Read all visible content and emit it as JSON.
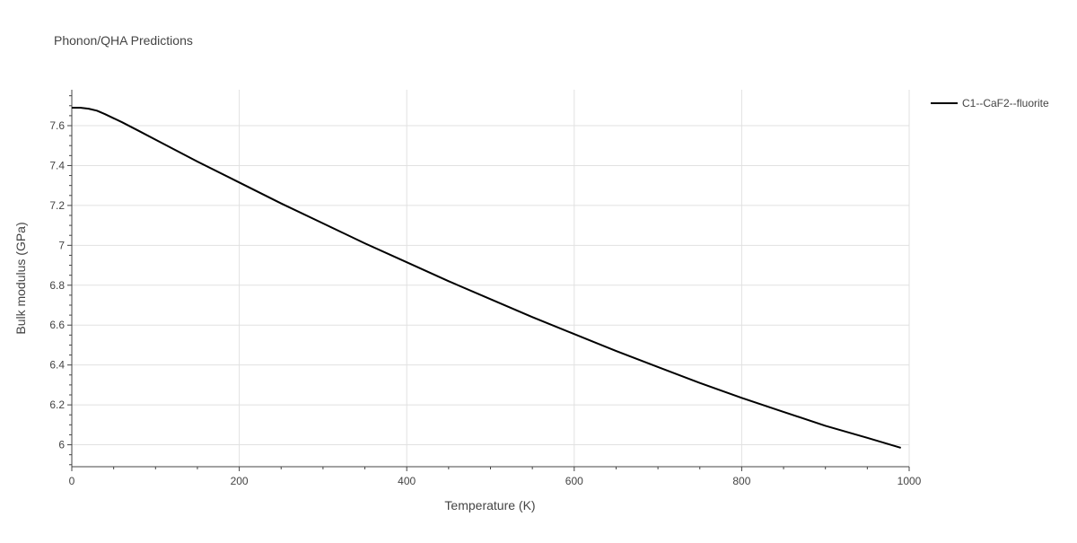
{
  "chart_data": {
    "type": "line",
    "title": "Phonon/QHA Predictions",
    "xlabel": "Temperature (K)",
    "ylabel": "Bulk modulus (GPa)",
    "xlim": [
      0,
      1000
    ],
    "ylim": [
      5.89,
      7.78
    ],
    "x_ticks": [
      0,
      200,
      400,
      600,
      800,
      1000
    ],
    "y_ticks": [
      6,
      6.2,
      6.4,
      6.6,
      6.8,
      7,
      7.2,
      7.4,
      7.6
    ],
    "x_tick_labels": [
      "0",
      "200",
      "400",
      "600",
      "800",
      "1000"
    ],
    "y_tick_labels": [
      "6",
      "6.2",
      "6.4",
      "6.6",
      "6.8",
      "7",
      "7.2",
      "7.4",
      "7.6"
    ],
    "grid": true,
    "legend_position": "top-right",
    "series": [
      {
        "name": "C1--CaF2--fluorite",
        "color": "#000000",
        "x": [
          0,
          10,
          20,
          30,
          40,
          50,
          60,
          80,
          100,
          150,
          200,
          250,
          300,
          350,
          400,
          450,
          500,
          550,
          600,
          650,
          700,
          750,
          800,
          850,
          900,
          950,
          990
        ],
        "y": [
          7.69,
          7.69,
          7.685,
          7.675,
          7.657,
          7.637,
          7.617,
          7.574,
          7.53,
          7.42,
          7.315,
          7.21,
          7.11,
          7.01,
          6.915,
          6.82,
          6.73,
          6.64,
          6.555,
          6.47,
          6.39,
          6.31,
          6.235,
          6.165,
          6.095,
          6.035,
          5.985
        ]
      }
    ]
  }
}
